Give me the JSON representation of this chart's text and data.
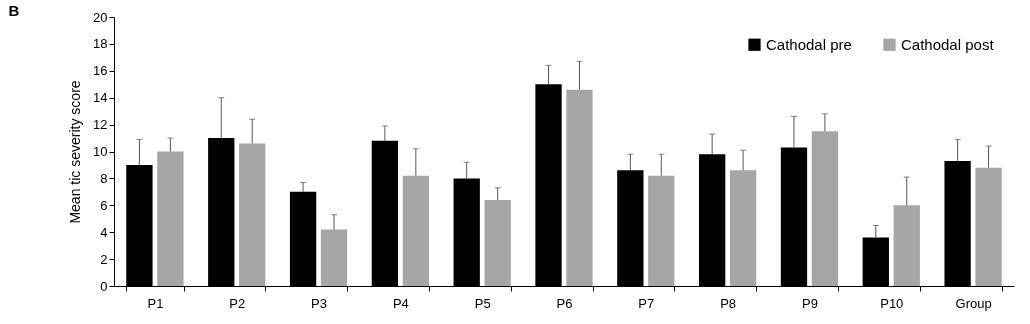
{
  "chart_data": {
    "type": "bar",
    "title": "B",
    "ylabel": "Mean tic severity score",
    "categories": [
      "P1",
      "P2",
      "P3",
      "P4",
      "P5",
      "P6",
      "P7",
      "P8",
      "P9",
      "P10",
      "Group"
    ],
    "series": [
      {
        "name": "Cathodal pre",
        "color": "#000000",
        "values": [
          9.0,
          11.0,
          7.0,
          10.8,
          8.0,
          15.0,
          8.6,
          9.8,
          10.3,
          3.6,
          9.3
        ],
        "errors": [
          [
            9.0,
            10.9
          ],
          [
            11.0,
            14.0
          ],
          [
            7.0,
            7.7
          ],
          [
            10.8,
            11.9
          ],
          [
            8.0,
            9.2
          ],
          [
            15.0,
            16.4
          ],
          [
            8.6,
            9.8
          ],
          [
            9.8,
            11.3
          ],
          [
            10.3,
            12.6
          ],
          [
            3.6,
            4.5
          ],
          [
            9.3,
            10.9
          ]
        ]
      },
      {
        "name": "Cathodal post",
        "color": "#a6a6a6",
        "values": [
          10.0,
          10.6,
          4.2,
          8.2,
          6.4,
          14.6,
          8.2,
          8.6,
          11.5,
          6.0,
          8.8
        ],
        "errors": [
          [
            10.0,
            11.0
          ],
          [
            10.6,
            12.4
          ],
          [
            4.2,
            5.3
          ],
          [
            8.2,
            10.2
          ],
          [
            6.4,
            7.3
          ],
          [
            14.6,
            16.7
          ],
          [
            8.2,
            9.8
          ],
          [
            8.6,
            10.1
          ],
          [
            11.5,
            12.8
          ],
          [
            6.0,
            8.1
          ],
          [
            8.8,
            10.4
          ]
        ]
      }
    ],
    "ylim": [
      0,
      20
    ],
    "yticks": [
      0,
      2,
      4,
      6,
      8,
      10,
      12,
      14,
      16,
      18,
      20
    ],
    "grid": false,
    "legend": "top right"
  }
}
